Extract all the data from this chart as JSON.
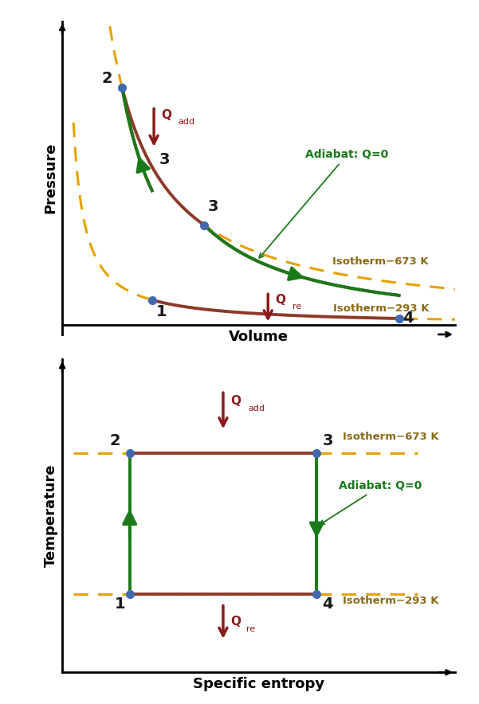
{
  "fig_width": 6.01,
  "fig_height": 8.84,
  "panel_bg": "#ffffff",
  "top": {
    "xlabel": "Volume",
    "ylabel": "Pressure",
    "isotherm_high_label": "Isotherm−673 K",
    "isotherm_low_label": "Isotherm−293 K",
    "adiabat_label": "Adiabat: Q=0",
    "point_color": "#4169b0",
    "curve_color_brown": "#8B3A2A",
    "curve_color_green": "#1a7a1a",
    "isotherm_dash_color": "#E8A000",
    "arrow_color": "#1a7a1a",
    "q_arrow_color": "#8B1A1A",
    "label_color": "#1a1a1a",
    "adiabat_label_color": "#1a7a1a",
    "isotherm_label_color": "#8B6914"
  },
  "bot": {
    "xlabel": "Specific entropy",
    "ylabel": "Temperature",
    "isotherm_high_label": "Isotherm−673 K",
    "isotherm_low_label": "Isotherm−293 K",
    "adiabat_label": "Adiabat: Q=0",
    "point_color": "#4169b0",
    "curve_color_brown": "#8B3A2A",
    "curve_color_green": "#1a7a1a",
    "isotherm_dash_color": "#E8A000",
    "arrow_color": "#1a7a1a",
    "q_arrow_color": "#8B1A1A",
    "label_color": "#1a1a1a",
    "adiabat_label_color": "#1a7a1a",
    "isotherm_label_color": "#8B6914"
  }
}
